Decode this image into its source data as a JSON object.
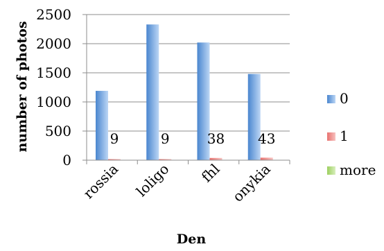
{
  "chart_data": {
    "type": "bar",
    "xlabel": "Den",
    "ylabel": "number of photos",
    "ylim": [
      0,
      2500
    ],
    "yticks": [
      0,
      500,
      1000,
      1500,
      2000,
      2500
    ],
    "categories": [
      "rossia",
      "loligo",
      "fhl",
      "onykia"
    ],
    "series": [
      {
        "name": "0",
        "values": [
          1190,
          2330,
          2020,
          1480
        ],
        "color": "#4a86cf",
        "color_light": "#bcd6f5"
      },
      {
        "name": "1",
        "values": [
          9,
          9,
          38,
          43
        ],
        "color": "#e8716e",
        "color_light": "#f7c2c0"
      },
      {
        "name": "more",
        "values": [
          0,
          0,
          0,
          0
        ],
        "color": "#9ccf5e",
        "color_light": "#d9efbe"
      }
    ],
    "data_labels": [
      "9",
      "9",
      "38",
      "43"
    ],
    "grid": true,
    "legend_position": "right"
  }
}
